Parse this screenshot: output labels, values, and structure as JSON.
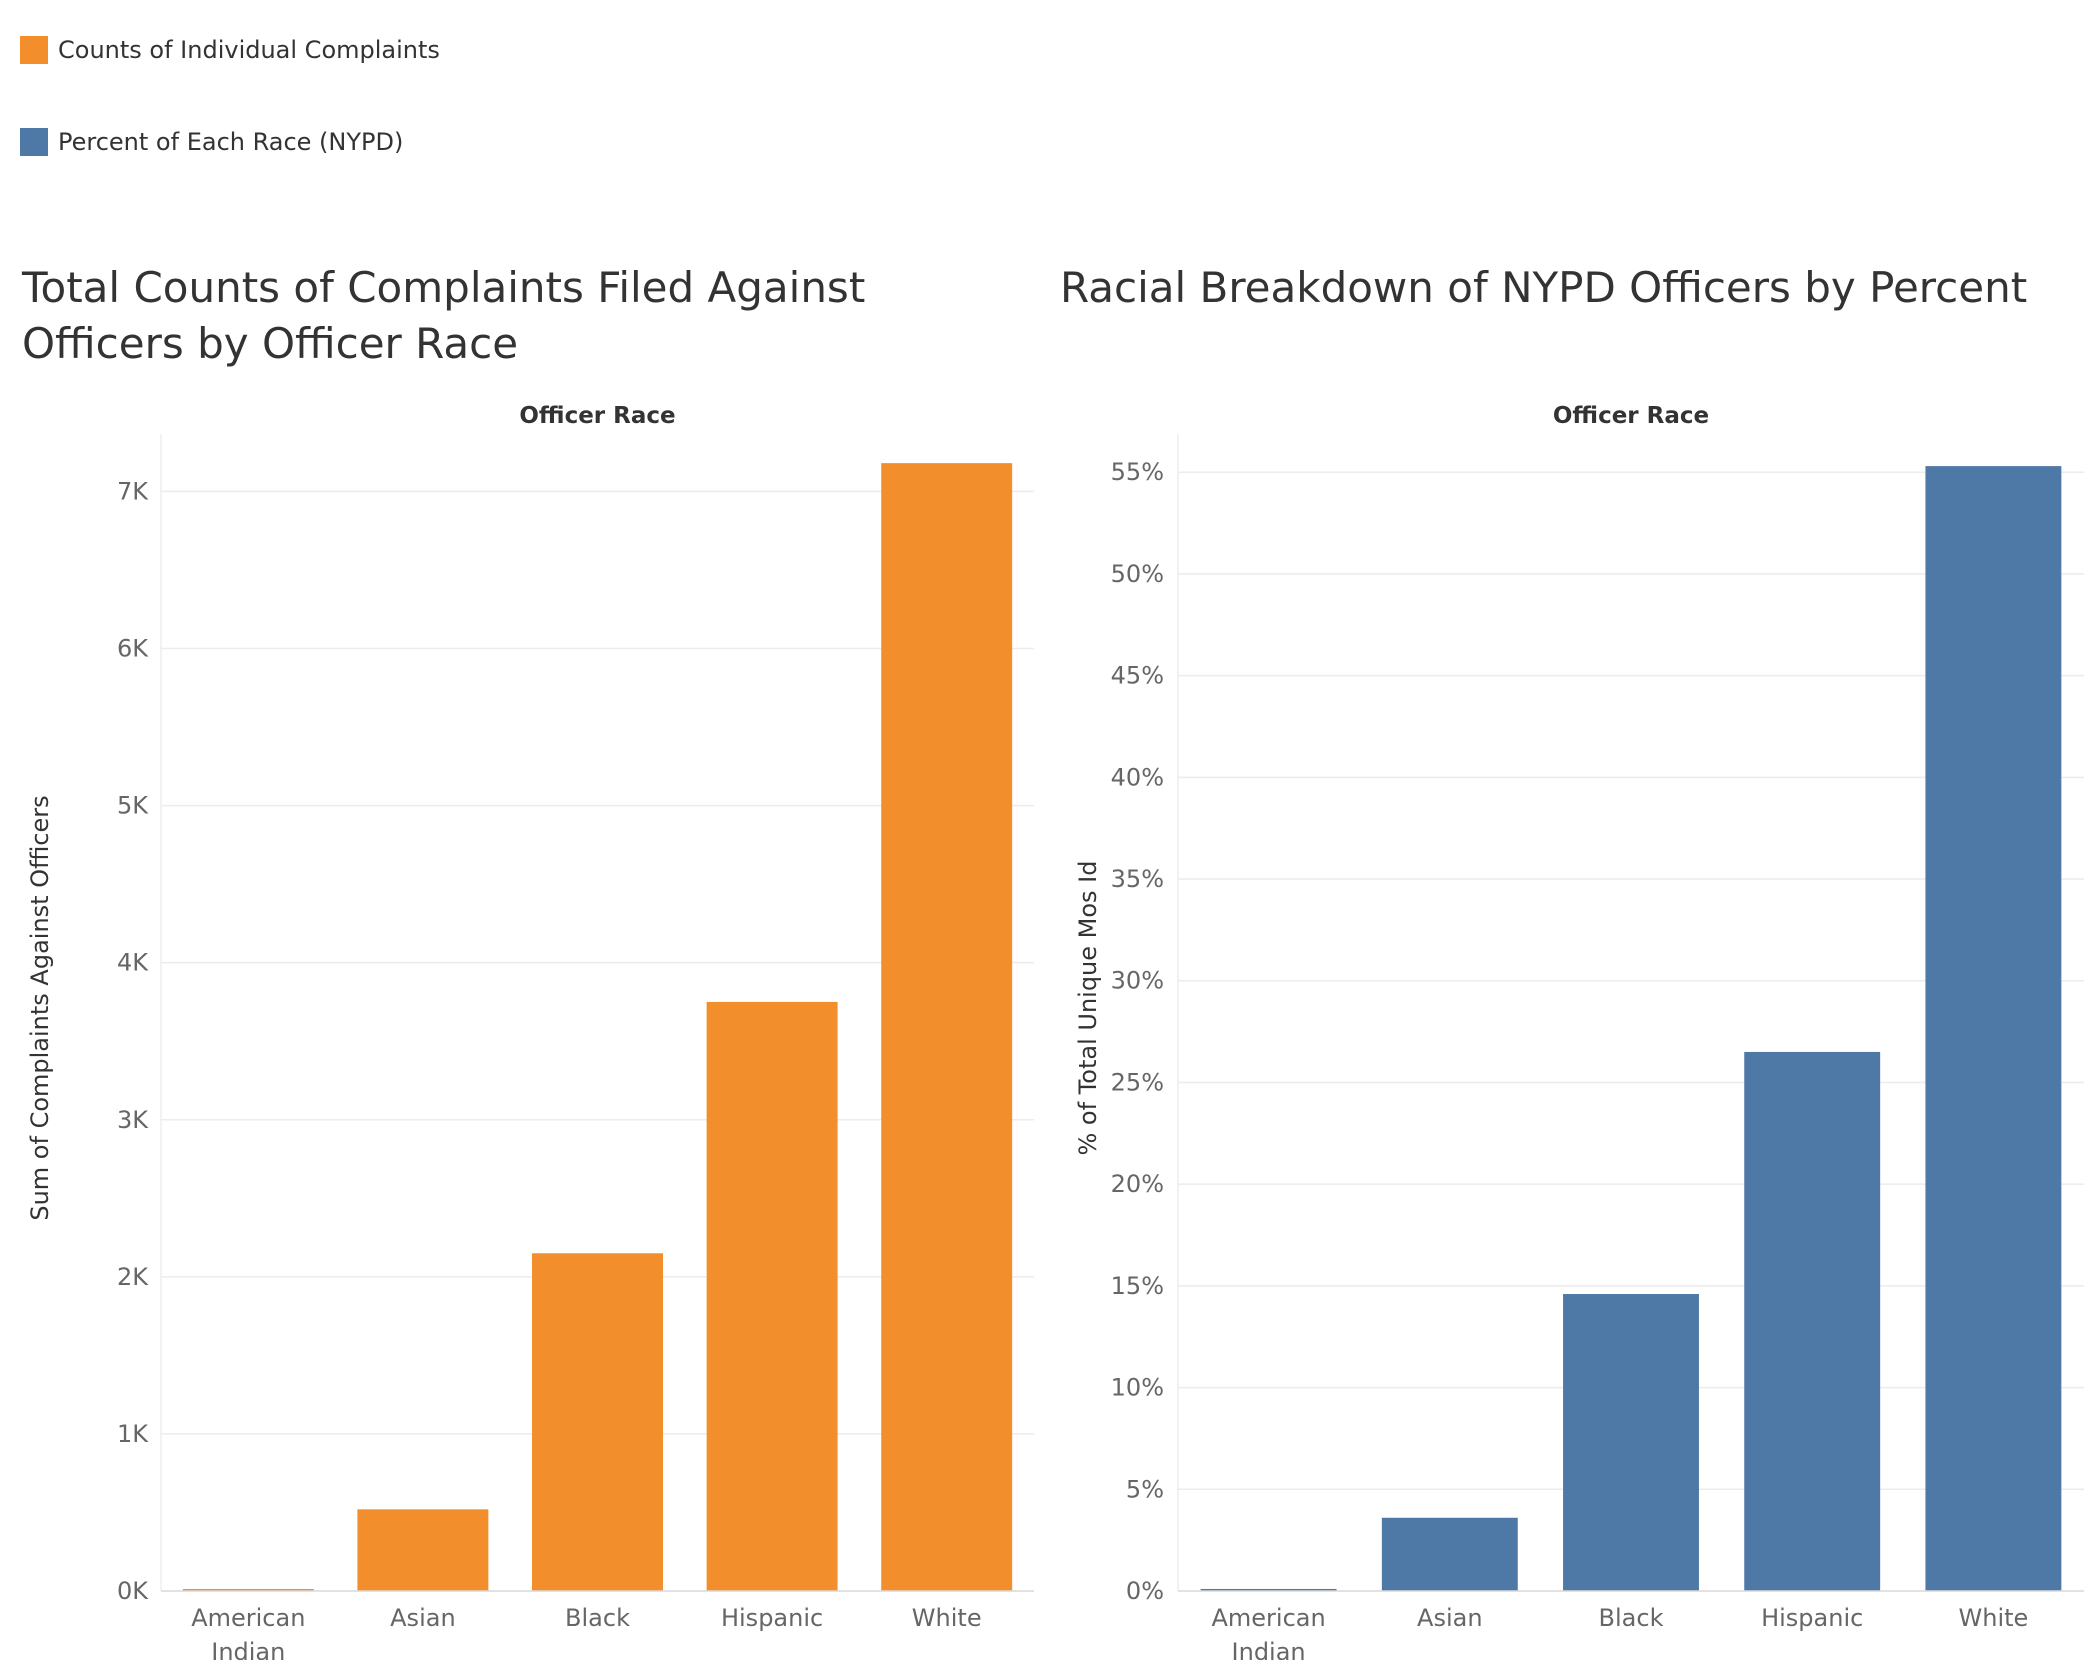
{
  "legend": {
    "items": [
      {
        "label": "Counts of Individual Complaints",
        "color": "#f28e2b"
      },
      {
        "label": "Percent of Each Race (NYPD)",
        "color": "#4e79a7"
      }
    ]
  },
  "chart_data": [
    {
      "type": "bar",
      "title": "Total Counts of Complaints Filed Against Officers by Officer Race",
      "header": "Officer Race",
      "xlabel": "",
      "ylabel": "Sum of Complaints Against Officers",
      "categories": [
        "American Indian",
        "Asian",
        "Black",
        "Hispanic",
        "White"
      ],
      "values": [
        10,
        520,
        2150,
        3750,
        7180
      ],
      "color": "#f28e2b",
      "ylim": [
        0,
        7200
      ],
      "yticks": [
        0,
        1000,
        2000,
        3000,
        4000,
        5000,
        6000,
        7000
      ],
      "ytick_labels": [
        "0K",
        "1K",
        "2K",
        "3K",
        "4K",
        "5K",
        "6K",
        "7K"
      ],
      "grid": true
    },
    {
      "type": "bar",
      "title": "Racial Breakdown of NYPD Officers by Percent",
      "header": "Officer Race",
      "xlabel": "",
      "ylabel": "% of Total Unique Mos Id",
      "categories": [
        "American Indian",
        "Asian",
        "Black",
        "Hispanic",
        "White"
      ],
      "values": [
        0.1,
        3.6,
        14.6,
        26.5,
        55.3
      ],
      "color": "#4e79a7",
      "ylim": [
        0,
        55.6
      ],
      "yticks": [
        0,
        5,
        10,
        15,
        20,
        25,
        30,
        35,
        40,
        45,
        50,
        55
      ],
      "ytick_labels": [
        "0%",
        "5%",
        "10%",
        "15%",
        "20%",
        "25%",
        "30%",
        "35%",
        "40%",
        "45%",
        "50%",
        "55%"
      ],
      "grid": true
    }
  ]
}
